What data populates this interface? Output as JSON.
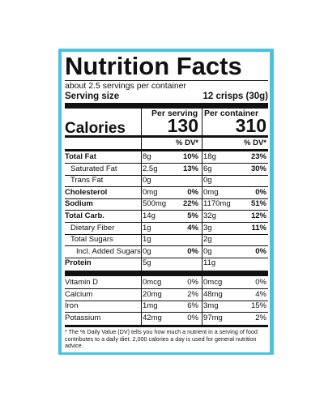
{
  "label": {
    "title": "Nutrition Facts",
    "servings": "about 2.5 servings per container",
    "serving_size_label": "Serving size",
    "serving_size": "12 crisps (30g)",
    "columns": [
      "Per serving",
      "Per container"
    ],
    "calories_label": "Calories",
    "calories": [
      "130",
      "310"
    ],
    "dv_headers": [
      "% DV*",
      "% DV*"
    ],
    "rows": [
      {
        "name": "Total Fat",
        "serving": "8g",
        "serving_dv": "10%",
        "container": "18g",
        "container_dv": "23%"
      },
      {
        "name": "Saturated Fat",
        "serving": "2.5g",
        "serving_dv": "13%",
        "container": "6g",
        "container_dv": "30%"
      },
      {
        "name": "Trans Fat",
        "serving": "0g",
        "container": "0g"
      },
      {
        "name": "Cholesterol",
        "serving": "0mg",
        "serving_dv": "0%",
        "container": "0mg",
        "container_dv": "0%"
      },
      {
        "name": "Sodium",
        "serving": "500mg",
        "serving_dv": "22%",
        "container": "1170mg",
        "container_dv": "51%"
      },
      {
        "name": "Total Carb.",
        "serving": "14g",
        "serving_dv": "5%",
        "container": "32g",
        "container_dv": "12%"
      },
      {
        "name": "Dietary Fiber",
        "serving": "1g",
        "serving_dv": "4%",
        "container": "3g",
        "container_dv": "11%"
      },
      {
        "name": "Total Sugars",
        "serving": "1g",
        "container": "2g"
      },
      {
        "name": "Incl. Added Sugars",
        "serving": "0g",
        "serving_dv": "0%",
        "container": "0g",
        "container_dv": "0%"
      },
      {
        "name": "Protein",
        "serving": "5g",
        "container": "11g"
      }
    ],
    "vitamins": [
      {
        "name": "Vitamin D",
        "serving": "0mcg",
        "serving_dv": "0%",
        "container": "0mcg",
        "container_dv": "0%"
      },
      {
        "name": "Calcium",
        "serving": "20mg",
        "serving_dv": "2%",
        "container": "48mg",
        "container_dv": "4%"
      },
      {
        "name": "Iron",
        "serving": "1mg",
        "serving_dv": "6%",
        "container": "3mg",
        "container_dv": "15%"
      },
      {
        "name": "Potassium",
        "serving": "42mg",
        "serving_dv": "0%",
        "container": "97mg",
        "container_dv": "2%"
      }
    ],
    "footnote": "* The % Daily Value (DV) tells you how much a nutrient in a serving of food contributes to a daily diet. 2,000 calories a day is used for general nutrition advice."
  }
}
